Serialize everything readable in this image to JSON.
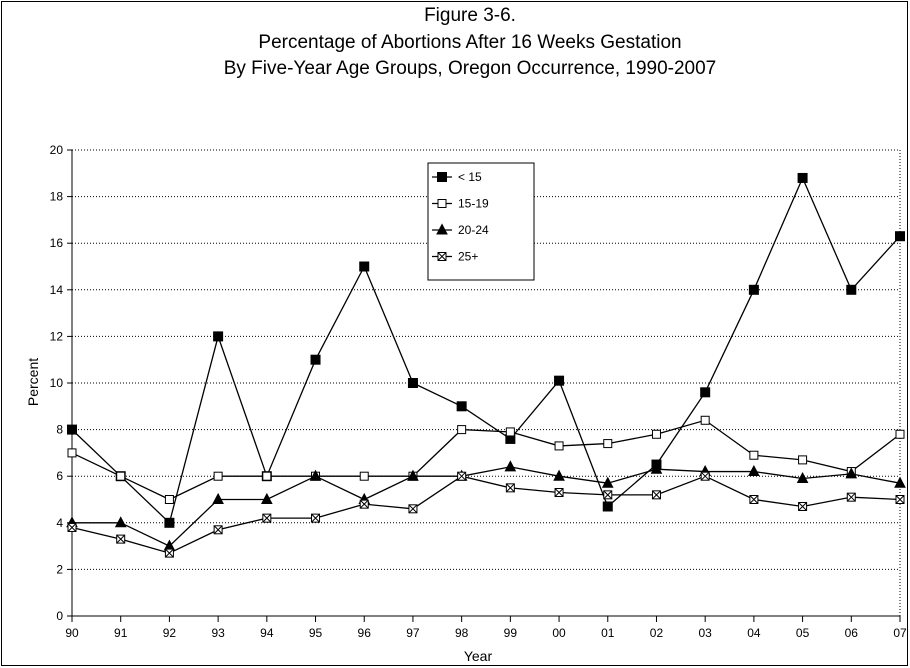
{
  "chart_data": {
    "type": "line",
    "title_lines": [
      "Figure 3-6.",
      "Percentage of Abortions After 16 Weeks Gestation",
      "By Five-Year Age Groups, Oregon Occurrence, 1990-2007"
    ],
    "xlabel": "Year",
    "ylabel": "Percent",
    "ylim": [
      0,
      20
    ],
    "yticks": [
      0,
      2,
      4,
      6,
      8,
      10,
      12,
      14,
      16,
      18,
      20
    ],
    "categories": [
      "90",
      "91",
      "92",
      "93",
      "94",
      "95",
      "96",
      "97",
      "98",
      "99",
      "00",
      "01",
      "02",
      "03",
      "04",
      "05",
      "06",
      "07"
    ],
    "grid": "horizontal dotted",
    "legend_position": "top-center",
    "series": [
      {
        "name": "< 15",
        "marker": "filled-square",
        "values": [
          8.0,
          6.0,
          4.0,
          12.0,
          6.0,
          11.0,
          15.0,
          10.0,
          9.0,
          7.6,
          10.1,
          4.7,
          6.5,
          9.6,
          14.0,
          18.8,
          14.0,
          16.3
        ]
      },
      {
        "name": "15-19",
        "marker": "open-square",
        "values": [
          7.0,
          6.0,
          5.0,
          6.0,
          6.0,
          6.0,
          6.0,
          6.0,
          8.0,
          7.9,
          7.3,
          7.4,
          7.8,
          8.4,
          6.9,
          6.7,
          6.2,
          7.8
        ]
      },
      {
        "name": "20-24",
        "marker": "filled-triangle",
        "values": [
          4.0,
          4.0,
          3.0,
          5.0,
          5.0,
          6.0,
          5.0,
          6.0,
          6.0,
          6.4,
          6.0,
          5.7,
          6.3,
          6.2,
          6.2,
          5.9,
          6.1,
          5.7
        ]
      },
      {
        "name": "25+",
        "marker": "x-square",
        "values": [
          3.8,
          3.3,
          2.7,
          3.7,
          4.2,
          4.2,
          4.8,
          4.6,
          6.0,
          5.5,
          5.3,
          5.2,
          5.2,
          6.0,
          5.0,
          4.7,
          5.1,
          5.0
        ]
      }
    ]
  }
}
